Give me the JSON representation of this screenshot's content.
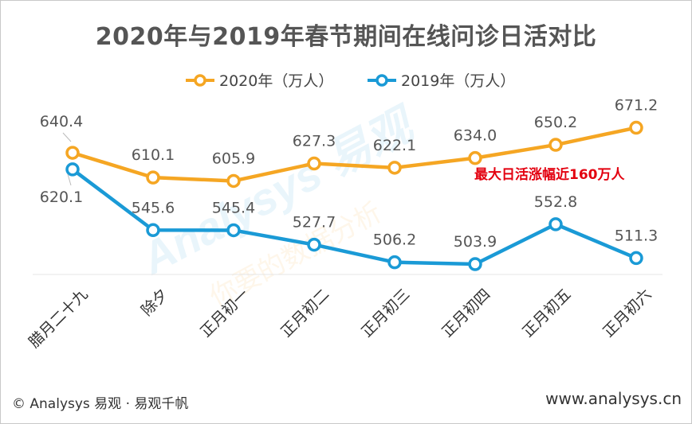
{
  "chart_data": {
    "type": "line",
    "title": "2020年与2019年春节期间在线问诊日活对比",
    "categories": [
      "腊月二十九",
      "除夕",
      "正月初一",
      "正月初二",
      "正月初三",
      "正月初四",
      "正月初五",
      "正月初六"
    ],
    "series": [
      {
        "name": "2020年（万人）",
        "color": "#f5a623",
        "values": [
          640.4,
          610.1,
          605.9,
          627.3,
          622.1,
          634.0,
          650.2,
          671.2
        ]
      },
      {
        "name": "2019年（万人）",
        "color": "#1a9ad6",
        "values": [
          620.1,
          545.6,
          545.4,
          527.7,
          506.2,
          503.9,
          552.8,
          511.3
        ]
      }
    ],
    "ylim": [
      460,
      700
    ],
    "grid": false,
    "legend_position": "top-center",
    "annotation": "最大日活涨幅近160万人"
  },
  "footer": {
    "left": "© Analysys 易观 · 易观千帆",
    "right": "www.analysys.cn"
  },
  "watermark": "Analysys 易观 你要的数据分析"
}
